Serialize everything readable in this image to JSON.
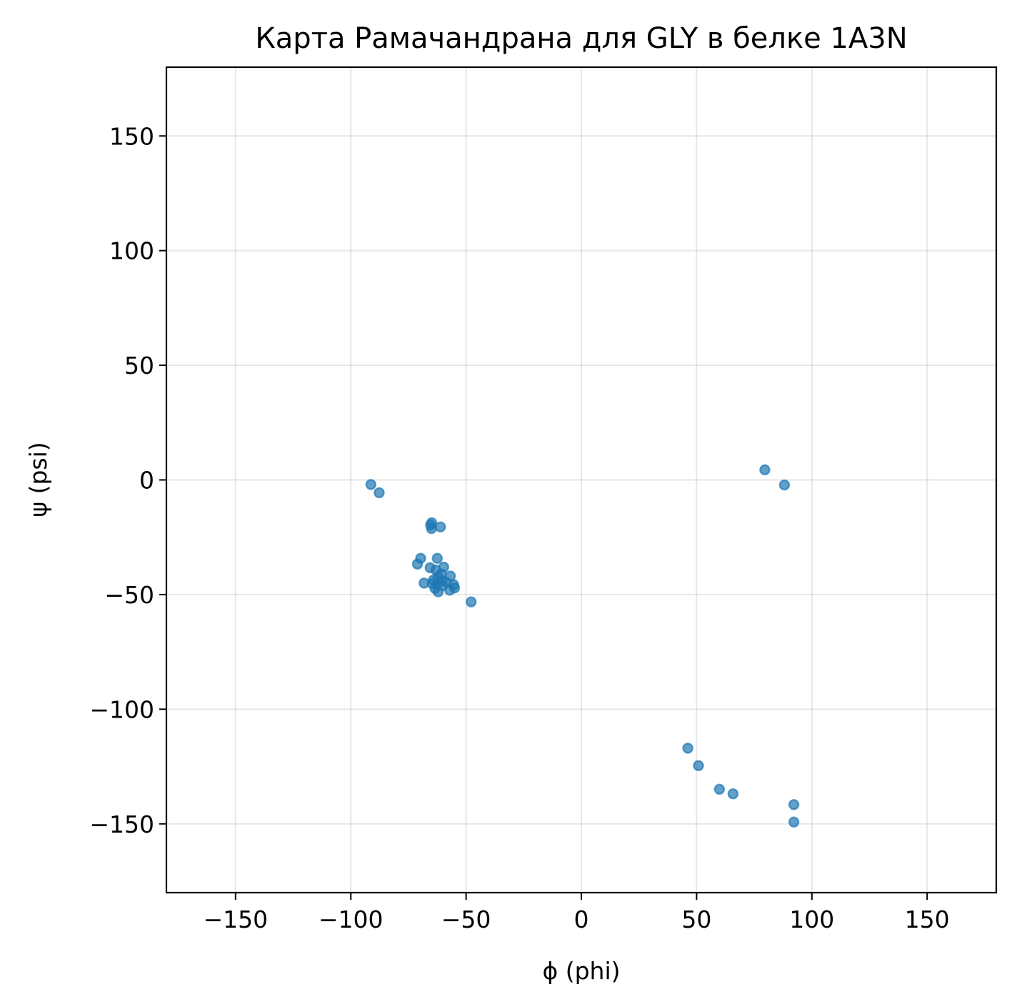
{
  "chart_data": {
    "type": "scatter",
    "title": "Карта Рамачандрана для GLY в белке 1A3N",
    "xlabel": "ϕ (phi)",
    "ylabel": "ψ (psi)",
    "xlim": [
      -180,
      180
    ],
    "ylim": [
      -180,
      180
    ],
    "xticks": [
      -150,
      -100,
      -50,
      0,
      50,
      100,
      150
    ],
    "yticks": [
      -150,
      -100,
      -50,
      0,
      50,
      100,
      150
    ],
    "xtick_labels": [
      "−150",
      "−100",
      "−50",
      "0",
      "50",
      "100",
      "150"
    ],
    "ytick_labels": [
      "−150",
      "−100",
      "−50",
      "0",
      "50",
      "100",
      "150"
    ],
    "grid": true,
    "color": "#1f77b4",
    "alpha": 0.7,
    "points": [
      {
        "x": -91.3,
        "y": -2.0
      },
      {
        "x": -87.7,
        "y": -5.6
      },
      {
        "x": -64.9,
        "y": -18.7
      },
      {
        "x": -65.4,
        "y": -19.7
      },
      {
        "x": -65.0,
        "y": -21.2
      },
      {
        "x": -61.1,
        "y": -20.5
      },
      {
        "x": -69.7,
        "y": -34.2
      },
      {
        "x": -71.1,
        "y": -36.7
      },
      {
        "x": -62.5,
        "y": -34.2
      },
      {
        "x": -65.6,
        "y": -38.3
      },
      {
        "x": -59.7,
        "y": -38.0
      },
      {
        "x": -63.1,
        "y": -39.3
      },
      {
        "x": -60.8,
        "y": -41.0
      },
      {
        "x": -56.8,
        "y": -41.9
      },
      {
        "x": -62.2,
        "y": -42.2
      },
      {
        "x": -64.2,
        "y": -43.7
      },
      {
        "x": -60.4,
        "y": -44.0
      },
      {
        "x": -58.6,
        "y": -44.6
      },
      {
        "x": -68.2,
        "y": -45.0
      },
      {
        "x": -64.7,
        "y": -45.2
      },
      {
        "x": -62.6,
        "y": -45.6
      },
      {
        "x": -60.1,
        "y": -46.1
      },
      {
        "x": -55.4,
        "y": -45.7
      },
      {
        "x": -55.0,
        "y": -47.1
      },
      {
        "x": -57.1,
        "y": -48.1
      },
      {
        "x": -62.1,
        "y": -48.8
      },
      {
        "x": -63.5,
        "y": -47.3
      },
      {
        "x": -47.8,
        "y": -53.2
      },
      {
        "x": 79.6,
        "y": 4.4
      },
      {
        "x": 88.1,
        "y": -2.2
      },
      {
        "x": 46.2,
        "y": -117.0
      },
      {
        "x": 50.8,
        "y": -124.6
      },
      {
        "x": 59.9,
        "y": -134.9
      },
      {
        "x": 65.8,
        "y": -136.9
      },
      {
        "x": 92.2,
        "y": -141.6
      },
      {
        "x": 92.2,
        "y": -149.2
      }
    ]
  }
}
